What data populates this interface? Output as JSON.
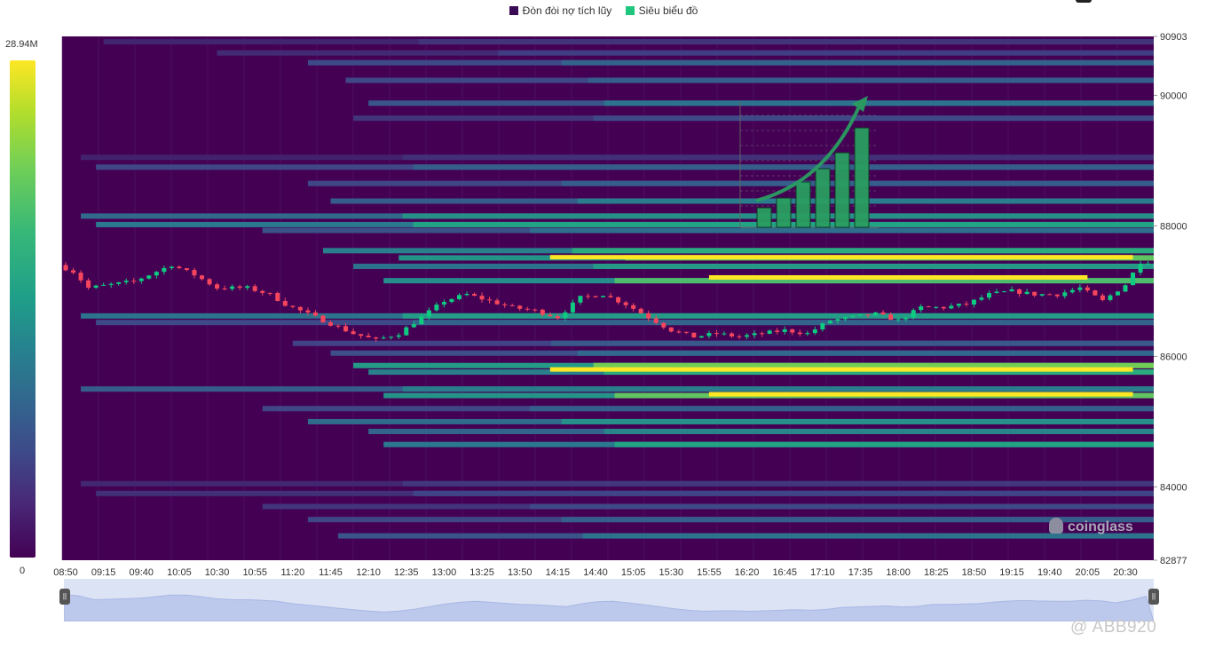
{
  "legend": [
    {
      "label": "Đòn đòi nợ tích lũy",
      "color": "#3b0a55"
    },
    {
      "label": "Siêu biểu đồ",
      "color": "#1fc77e"
    }
  ],
  "colorbar": {
    "max_label": "28.94M",
    "min_label": "0"
  },
  "brand": "coinglass",
  "watermark": "@ ABB920",
  "chart_data": {
    "type": "heatmap",
    "x_tick_labels": [
      "08:50",
      "09:15",
      "09:40",
      "10:05",
      "10:30",
      "10:55",
      "11:20",
      "11:45",
      "12:10",
      "12:35",
      "13:00",
      "13:25",
      "13:50",
      "14:15",
      "14:40",
      "15:05",
      "15:30",
      "15:55",
      "16:20",
      "16:45",
      "17:10",
      "17:35",
      "18:00",
      "18:25",
      "18:50",
      "19:15",
      "19:40",
      "20:05",
      "20:30"
    ],
    "y_tick_labels": [
      "90903",
      "90000",
      "88000",
      "86000",
      "84000",
      "82877"
    ],
    "ylim": [
      82877,
      90903
    ],
    "liquidation_levels": [
      {
        "price": 90820,
        "start": "09:15",
        "intensity": 0.15
      },
      {
        "price": 90650,
        "start": "10:30",
        "intensity": 0.18
      },
      {
        "price": 90500,
        "start": "11:30",
        "intensity": 0.32
      },
      {
        "price": 90230,
        "start": "11:55",
        "intensity": 0.3
      },
      {
        "price": 89880,
        "start": "12:10",
        "intensity": 0.38
      },
      {
        "price": 89650,
        "start": "12:00",
        "intensity": 0.22
      },
      {
        "price": 89050,
        "start": "09:00",
        "intensity": 0.14
      },
      {
        "price": 88900,
        "start": "09:10",
        "intensity": 0.3
      },
      {
        "price": 88650,
        "start": "11:30",
        "intensity": 0.3
      },
      {
        "price": 88380,
        "start": "11:45",
        "intensity": 0.42
      },
      {
        "price": 88150,
        "start": "09:00",
        "intensity": 0.5
      },
      {
        "price": 88020,
        "start": "09:10",
        "intensity": 0.58
      },
      {
        "price": 87930,
        "start": "11:00",
        "intensity": 0.36
      },
      {
        "price": 87620,
        "start": "11:40",
        "intensity": 0.62
      },
      {
        "price": 87510,
        "start": "12:30",
        "intensity": 0.74
      },
      {
        "price": 87380,
        "start": "12:00",
        "intensity": 0.54
      },
      {
        "price": 87160,
        "start": "12:20",
        "intensity": 0.7
      },
      {
        "price": 86620,
        "start": "09:00",
        "intensity": 0.55
      },
      {
        "price": 86520,
        "start": "09:10",
        "intensity": 0.32
      },
      {
        "price": 86200,
        "start": "11:20",
        "intensity": 0.28
      },
      {
        "price": 86050,
        "start": "11:45",
        "intensity": 0.34
      },
      {
        "price": 85860,
        "start": "12:00",
        "intensity": 0.78
      },
      {
        "price": 85760,
        "start": "12:10",
        "intensity": 0.62
      },
      {
        "price": 85500,
        "start": "09:00",
        "intensity": 0.42
      },
      {
        "price": 85400,
        "start": "12:20",
        "intensity": 0.74
      },
      {
        "price": 85200,
        "start": "11:00",
        "intensity": 0.3
      },
      {
        "price": 85000,
        "start": "11:30",
        "intensity": 0.5
      },
      {
        "price": 84850,
        "start": "12:10",
        "intensity": 0.46
      },
      {
        "price": 84650,
        "start": "12:20",
        "intensity": 0.58
      },
      {
        "price": 84050,
        "start": "09:00",
        "intensity": 0.16
      },
      {
        "price": 83900,
        "start": "09:10",
        "intensity": 0.2
      },
      {
        "price": 83700,
        "start": "11:00",
        "intensity": 0.22
      },
      {
        "price": 83500,
        "start": "11:30",
        "intensity": 0.3
      },
      {
        "price": 83250,
        "start": "11:50",
        "intensity": 0.38
      }
    ],
    "hot_levels": [
      {
        "price": 87520,
        "start": "14:10",
        "end": "20:35"
      },
      {
        "price": 87210,
        "start": "15:55",
        "end": "20:05"
      },
      {
        "price": 85800,
        "start": "14:10",
        "end": "20:35"
      },
      {
        "price": 85420,
        "start": "15:55",
        "end": "20:35"
      }
    ],
    "price_path": [
      {
        "t": "08:50",
        "p": 87400
      },
      {
        "t": "09:00",
        "p": 87300
      },
      {
        "t": "09:10",
        "p": 87050
      },
      {
        "t": "09:25",
        "p": 87100
      },
      {
        "t": "09:40",
        "p": 87150
      },
      {
        "t": "09:55",
        "p": 87300
      },
      {
        "t": "10:05",
        "p": 87400
      },
      {
        "t": "10:20",
        "p": 87250
      },
      {
        "t": "10:35",
        "p": 87050
      },
      {
        "t": "10:55",
        "p": 87050
      },
      {
        "t": "11:10",
        "p": 86950
      },
      {
        "t": "11:20",
        "p": 86800
      },
      {
        "t": "11:35",
        "p": 86650
      },
      {
        "t": "11:50",
        "p": 86500
      },
      {
        "t": "12:05",
        "p": 86350
      },
      {
        "t": "12:20",
        "p": 86250
      },
      {
        "t": "12:35",
        "p": 86350
      },
      {
        "t": "12:50",
        "p": 86600
      },
      {
        "t": "13:05",
        "p": 86850
      },
      {
        "t": "13:20",
        "p": 86950
      },
      {
        "t": "13:35",
        "p": 86850
      },
      {
        "t": "13:50",
        "p": 86750
      },
      {
        "t": "14:05",
        "p": 86700
      },
      {
        "t": "14:20",
        "p": 86600
      },
      {
        "t": "14:35",
        "p": 86900
      },
      {
        "t": "14:50",
        "p": 86950
      },
      {
        "t": "15:05",
        "p": 86800
      },
      {
        "t": "15:20",
        "p": 86600
      },
      {
        "t": "15:35",
        "p": 86400
      },
      {
        "t": "15:50",
        "p": 86300
      },
      {
        "t": "16:05",
        "p": 86350
      },
      {
        "t": "16:20",
        "p": 86300
      },
      {
        "t": "16:35",
        "p": 86350
      },
      {
        "t": "16:50",
        "p": 86400
      },
      {
        "t": "17:05",
        "p": 86350
      },
      {
        "t": "17:20",
        "p": 86550
      },
      {
        "t": "17:35",
        "p": 86600
      },
      {
        "t": "17:50",
        "p": 86650
      },
      {
        "t": "18:05",
        "p": 86550
      },
      {
        "t": "18:20",
        "p": 86750
      },
      {
        "t": "18:35",
        "p": 86750
      },
      {
        "t": "18:50",
        "p": 86800
      },
      {
        "t": "19:05",
        "p": 86950
      },
      {
        "t": "19:20",
        "p": 87000
      },
      {
        "t": "19:35",
        "p": 86950
      },
      {
        "t": "19:50",
        "p": 86950
      },
      {
        "t": "20:05",
        "p": 87050
      },
      {
        "t": "20:20",
        "p": 86850
      },
      {
        "t": "20:35",
        "p": 87100
      },
      {
        "t": "20:45",
        "p": 87450
      }
    ]
  }
}
